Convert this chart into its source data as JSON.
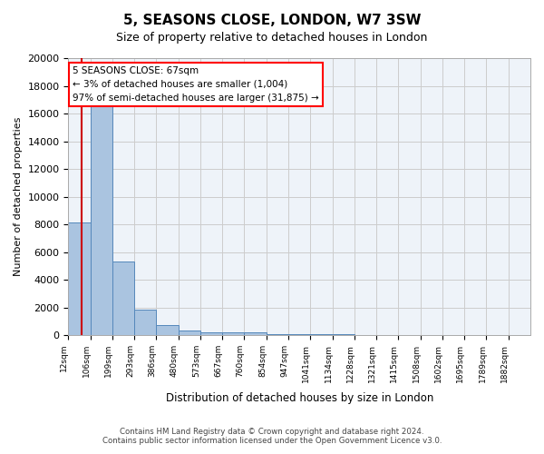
{
  "title": "5, SEASONS CLOSE, LONDON, W7 3SW",
  "subtitle": "Size of property relative to detached houses in London",
  "xlabel": "Distribution of detached houses by size in London",
  "ylabel": "Number of detached properties",
  "bin_labels": [
    "12sqm",
    "106sqm",
    "199sqm",
    "293sqm",
    "386sqm",
    "480sqm",
    "573sqm",
    "667sqm",
    "760sqm",
    "854sqm",
    "947sqm",
    "1041sqm",
    "1134sqm",
    "1228sqm",
    "1321sqm",
    "1415sqm",
    "1508sqm",
    "1602sqm",
    "1695sqm",
    "1789sqm",
    "1882sqm"
  ],
  "bin_edges": [
    12,
    106,
    199,
    293,
    386,
    480,
    573,
    667,
    760,
    854,
    947,
    1041,
    1134,
    1228,
    1321,
    1415,
    1508,
    1602,
    1695,
    1789,
    1882
  ],
  "bar_heights": [
    8100,
    16500,
    5300,
    1850,
    700,
    300,
    220,
    200,
    180,
    100,
    60,
    50,
    40,
    35,
    30,
    25,
    20,
    18,
    15,
    12
  ],
  "bar_color": "#aac4e0",
  "bar_edge_color": "#5588bb",
  "background_color": "#eef3f9",
  "grid_color": "#cccccc",
  "property_size": 67,
  "property_label": "5 SEASONS CLOSE: 67sqm",
  "annotation_line1": "← 3% of detached houses are smaller (1,004)",
  "annotation_line2": "97% of semi-detached houses are larger (31,875) →",
  "redline_color": "#cc0000",
  "ylim": [
    0,
    20000
  ],
  "yticks": [
    0,
    2000,
    4000,
    6000,
    8000,
    10000,
    12000,
    14000,
    16000,
    18000,
    20000
  ],
  "footer_line1": "Contains HM Land Registry data © Crown copyright and database right 2024.",
  "footer_line2": "Contains public sector information licensed under the Open Government Licence v3.0."
}
